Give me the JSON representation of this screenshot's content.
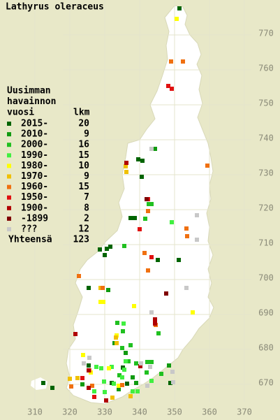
{
  "chart_data": {
    "type": "scatter",
    "title": "Lathyrus oleraceus",
    "legend_title": [
      "Uusimman",
      "havainnon",
      "vuosi"
    ],
    "count_header": "lkm",
    "total_label": "Yhteensä",
    "total": 123,
    "xlim": [
      300,
      380
    ],
    "ylim": [
      660,
      780
    ],
    "xticks": [
      310,
      320,
      330,
      340,
      350,
      360,
      370
    ],
    "yticks": [
      670,
      680,
      690,
      700,
      710,
      720,
      730,
      740,
      750,
      760,
      770
    ],
    "grid": true,
    "series": [
      {
        "name": "2015-",
        "count": 20,
        "color": "#006400",
        "x": [
          351.4,
          339.6,
          340.8,
          340.6,
          338.6,
          337.4,
          331.6,
          330.6,
          328.6,
          330,
          345.2,
          351.2,
          325.4,
          325.4,
          335.2,
          332,
          336.4,
          348.8,
          312.4,
          315
        ],
        "y": [
          777.6,
          734.4,
          734,
          729.4,
          717.6,
          717.6,
          709.4,
          708.8,
          708.6,
          707,
          705.6,
          705.6,
          697.6,
          675.4,
          674.8,
          670.4,
          670.2,
          670.4,
          670.4,
          669
        ]
      },
      {
        "name": "2010-",
        "count": 9,
        "color": "#109a10",
        "x": [
          344.4,
          332.8,
          336,
          338,
          334,
          348.4,
          323.6,
          331,
          339
        ],
        "y": [
          737.4,
          681.8,
          679,
          672,
          668.6,
          675.4,
          670,
          697,
          670.4
        ]
      },
      {
        "name": "2000-",
        "count": 16,
        "color": "#20c020",
        "x": [
          342.6,
          343.4,
          341.6,
          335.6,
          345.4,
          333.6,
          335.2,
          337.4,
          335,
          336.8,
          342.2,
          343.4,
          339,
          346.2,
          334.2,
          342
        ],
        "y": [
          721.6,
          721.6,
          717.4,
          709.6,
          684.6,
          687.6,
          685.2,
          681.2,
          680.4,
          676.6,
          676.4,
          676.4,
          676,
          673,
          672.6,
          673.4
        ]
      },
      {
        "name": "1990-",
        "count": 15,
        "color": "#40f040",
        "x": [
          349.2,
          335.4,
          329.8,
          332.6,
          330,
          335.6,
          332,
          329,
          336,
          335,
          338,
          339.4,
          327.6,
          343.4,
          327
        ],
        "y": [
          716.4,
          687.4,
          670.8,
          670.2,
          667.8,
          674.2,
          675,
          674.6,
          676.6,
          672,
          668,
          668,
          675,
          671,
          668
        ]
      },
      {
        "name": "1980-",
        "count": 10,
        "color": "#ffff00",
        "x": [
          350.6,
          338.4,
          328.8,
          329.6,
          323.8,
          331.2,
          326,
          334,
          355.2,
          333.4
        ],
        "y": [
          774.6,
          692.4,
          693.6,
          693.6,
          678.4,
          674.6,
          673.4,
          669.6,
          690.6,
          684
        ]
      },
      {
        "name": "1970-",
        "count": 9,
        "color": "#f0c000",
        "x": [
          336.2,
          336,
          328.8,
          333.2,
          333.4,
          322.2,
          337.4,
          332.2,
          320
        ],
        "y": [
          730.8,
          732.4,
          697.6,
          683.4,
          681.8,
          671.8,
          666.6,
          666.2,
          671.6
        ]
      },
      {
        "name": "1960-",
        "count": 15,
        "color": "#f07010",
        "x": [
          352.4,
          359.4,
          342.4,
          353.4,
          353.6,
          341.4,
          322.6,
          329.4,
          342.4,
          349,
          325.6,
          335,
          326.4,
          320.4,
          344.6
        ],
        "y": [
          762.4,
          732.6,
          719.6,
          714.6,
          712.4,
          707.6,
          701,
          697.6,
          702.6,
          762.4,
          674,
          669.8,
          669.6,
          669.4,
          687
        ]
      },
      {
        "name": "1950-",
        "count": 7,
        "color": "#e01010",
        "x": [
          348.2,
          349.2,
          342.4,
          340,
          323.6,
          327,
          343.4
        ],
        "y": [
          755.4,
          754.6,
          723,
          714.4,
          671.8,
          666.4,
          706.4
        ]
      },
      {
        "name": "1900-",
        "count": 8,
        "color": "#b00000",
        "x": [
          336.2,
          344.4,
          344.4,
          321.6,
          325.4,
          325.4,
          330.4,
          340.2
        ],
        "y": [
          733.4,
          688.6,
          687.4,
          684.4,
          674,
          669,
          665.4,
          675.2
        ]
      },
      {
        "name": "-1899",
        "count": 2,
        "color": "#800000",
        "x": [
          342,
          347.6
        ],
        "y": [
          723,
          696
        ]
      },
      {
        "name": "???",
        "count": 12,
        "color": "#c8c8c8",
        "x": [
          343.4,
          356.4,
          356.4,
          353.4,
          343.4,
          342.2,
          325.6,
          349.4,
          349.6,
          343,
          340.4,
          324
        ],
        "y": [
          737.4,
          718.4,
          711.4,
          697.6,
          690.6,
          669.6,
          677.6,
          673.6,
          670.6,
          675,
          676,
          676
        ]
      }
    ]
  }
}
